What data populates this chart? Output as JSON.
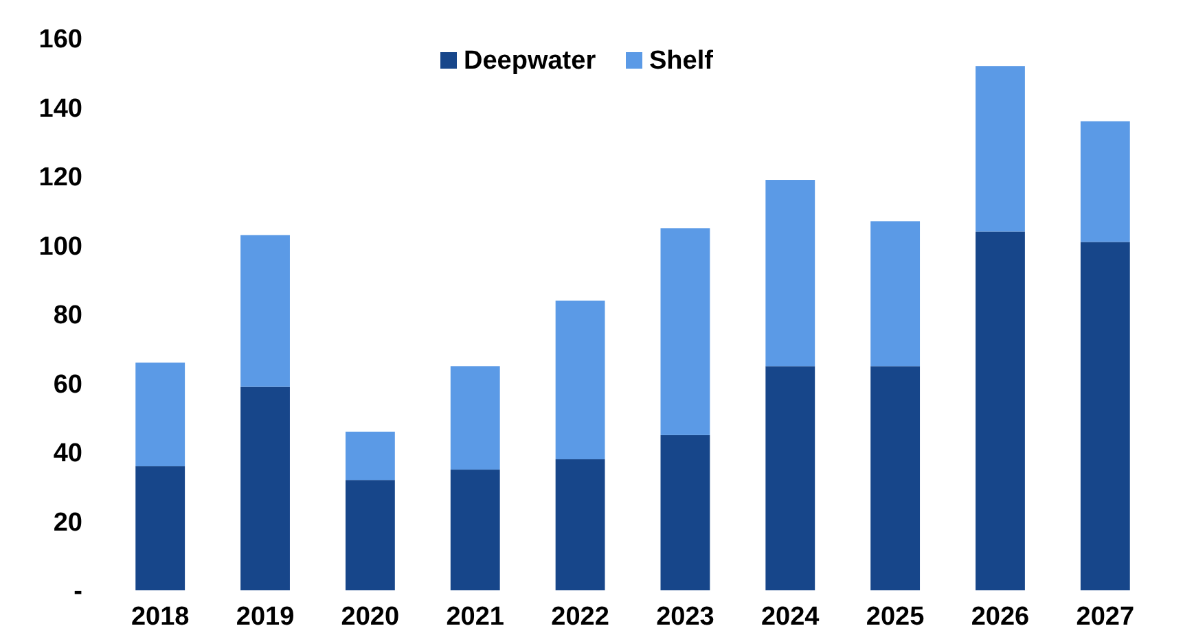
{
  "chart_data": {
    "type": "bar",
    "stacked": true,
    "categories": [
      "2018",
      "2019",
      "2020",
      "2021",
      "2022",
      "2023",
      "2024",
      "2025",
      "2026",
      "2027"
    ],
    "series": [
      {
        "name": "Deepwater",
        "color": "#17468a",
        "values": [
          36,
          59,
          32,
          35,
          38,
          45,
          65,
          65,
          104,
          101
        ]
      },
      {
        "name": "Shelf",
        "color": "#5b9ae6",
        "values": [
          30,
          44,
          14,
          30,
          46,
          60,
          54,
          42,
          48,
          35
        ]
      }
    ],
    "ylim": [
      0,
      160
    ],
    "yticks": [
      {
        "value": 0,
        "label": "-"
      },
      20,
      40,
      60,
      80,
      100,
      120,
      140,
      160
    ],
    "legend": "top",
    "grid": false
  }
}
